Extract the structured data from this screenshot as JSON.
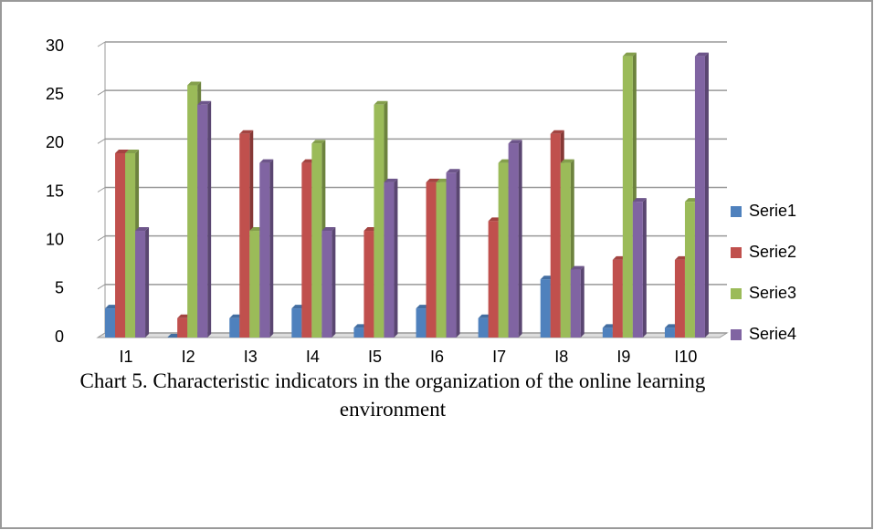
{
  "chart_data": {
    "type": "bar",
    "caption": "Chart 5. Characteristic indicators in the organization of the online learning environment",
    "categories": [
      "I1",
      "I2",
      "I3",
      "I4",
      "I5",
      "I6",
      "I7",
      "I8",
      "I9",
      "I10"
    ],
    "series": [
      {
        "name": "Serie1",
        "color": "#4f81bd",
        "values": [
          3,
          0,
          2,
          3,
          1,
          3,
          2,
          6,
          1,
          1
        ]
      },
      {
        "name": "Serie2",
        "color": "#c0504d",
        "values": [
          19,
          2,
          21,
          18,
          11,
          16,
          12,
          21,
          8,
          8
        ]
      },
      {
        "name": "Serie3",
        "color": "#9bbb59",
        "values": [
          19,
          26,
          11,
          20,
          24,
          16,
          18,
          18,
          29,
          14
        ]
      },
      {
        "name": "Serie4",
        "color": "#8064a2",
        "values": [
          11,
          24,
          18,
          11,
          16,
          17,
          20,
          7,
          14,
          29
        ]
      }
    ],
    "ylim": [
      0,
      30
    ],
    "yticks": [
      0,
      5,
      10,
      15,
      20,
      25,
      30
    ],
    "grid": true,
    "legend": "right"
  }
}
